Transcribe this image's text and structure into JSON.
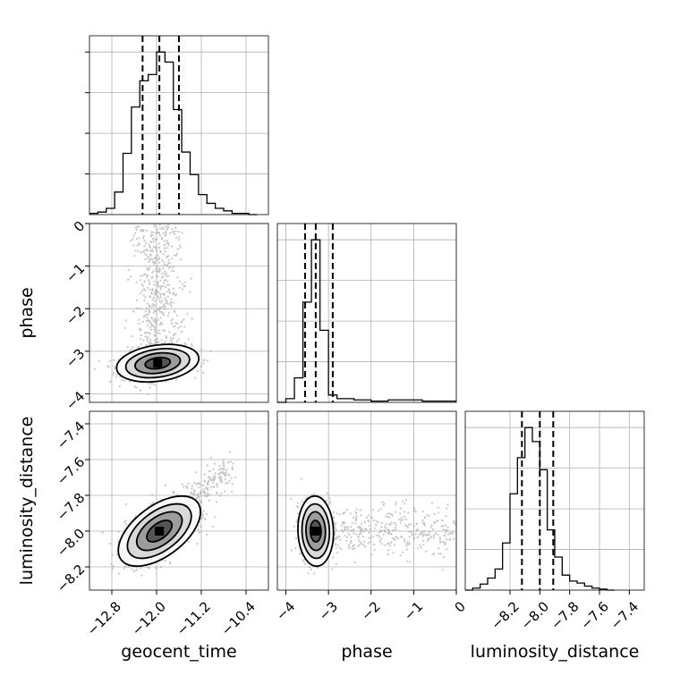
{
  "chart_data": {
    "type": "corner",
    "parameters": [
      "geocent_time",
      "phase",
      "luminosity_distance"
    ],
    "grid": true,
    "histograms": [
      {
        "name": "geocent_time",
        "xlim": [
          -13.2,
          -10.0
        ],
        "bin_edges": [
          -13.2,
          -13.05,
          -12.9,
          -12.75,
          -12.6,
          -12.45,
          -12.3,
          -12.15,
          -12.0,
          -11.85,
          -11.7,
          -11.55,
          -11.4,
          -11.25,
          -11.1,
          -10.95,
          -10.8,
          -10.65,
          -10.5,
          -10.35,
          -10.2
        ],
        "counts": [
          1,
          2,
          5,
          18,
          49,
          86,
          107,
          112,
          130,
          122,
          84,
          50,
          32,
          16,
          9,
          5,
          3,
          1,
          1,
          0
        ],
        "quantiles": [
          -12.25,
          -11.95,
          -11.6
        ]
      },
      {
        "name": "phase",
        "xlim": [
          -4.2,
          0.0
        ],
        "bin_edges": [
          -4.2,
          -4.0,
          -3.8,
          -3.6,
          -3.4,
          -3.2,
          -3.0,
          -2.8,
          -2.6,
          -2.4,
          -2.2,
          -2.0,
          -1.8,
          -1.6,
          -1.4,
          -1.2,
          -1.0,
          -0.8,
          -0.6,
          -0.4,
          -0.2,
          0.0
        ],
        "counts": [
          0,
          3,
          20,
          82,
          133,
          59,
          6,
          3,
          3,
          2,
          2,
          1,
          1,
          2,
          2,
          2,
          2,
          1,
          1,
          1,
          1
        ],
        "quantiles": [
          -3.55,
          -3.3,
          -2.9
        ]
      },
      {
        "name": "luminosity_distance",
        "xlim": [
          -8.5,
          -7.3
        ],
        "bin_edges": [
          -8.5,
          -8.45,
          -8.4,
          -8.35,
          -8.3,
          -8.25,
          -8.2,
          -8.15,
          -8.1,
          -8.05,
          -8.0,
          -7.95,
          -7.9,
          -7.85,
          -7.8,
          -7.75,
          -7.7,
          -7.65,
          -7.6,
          -7.55,
          -7.5
        ],
        "counts": [
          0,
          2,
          6,
          12,
          21,
          47,
          96,
          132,
          162,
          148,
          120,
          60,
          33,
          15,
          9,
          7,
          4,
          2,
          1,
          0
        ],
        "quantiles": [
          -8.12,
          -8.0,
          -7.91
        ]
      }
    ],
    "pairs": [
      {
        "x": "geocent_time",
        "y": "phase",
        "peak": [
          -11.98,
          -3.28
        ],
        "sigma": [
          0.3,
          0.18
        ],
        "rho": 0.25,
        "contour_levels": [
          0.5,
          0.25,
          0.1,
          0.03
        ]
      },
      {
        "x": "geocent_time",
        "y": "luminosity_distance",
        "peak": [
          -11.95,
          -8.0
        ],
        "sigma": [
          0.3,
          0.08
        ],
        "rho": 0.55,
        "contour_levels": [
          0.5,
          0.25,
          0.1,
          0.03
        ]
      },
      {
        "x": "phase",
        "y": "luminosity_distance",
        "peak": [
          -3.3,
          -8.0
        ],
        "sigma": [
          0.17,
          0.08
        ],
        "rho": -0.05,
        "contour_levels": [
          0.5,
          0.25,
          0.1,
          0.03
        ]
      }
    ],
    "axes": {
      "geocent_time": {
        "ticks": [
          -12.8,
          -12.0,
          -11.2,
          -10.4
        ],
        "tick_labels": [
          "−12.8",
          "−12.0",
          "−11.2",
          "−10.4"
        ]
      },
      "phase": {
        "ticks": [
          -4,
          -3,
          -2,
          -1,
          0
        ],
        "tick_labels": [
          "−4",
          "−3",
          "−2",
          "−1",
          "0"
        ]
      },
      "luminosity_distance": {
        "ticks": [
          -8.2,
          -8.0,
          -7.8,
          -7.6,
          -7.4
        ],
        "tick_labels": [
          "−8.2",
          "−8.0",
          "−7.8",
          "−7.6",
          "−7.4"
        ]
      }
    },
    "xlabels": [
      "geocent_time",
      "phase",
      "luminosity_distance"
    ],
    "ylabels": [
      "phase",
      "luminosity_distance"
    ]
  }
}
